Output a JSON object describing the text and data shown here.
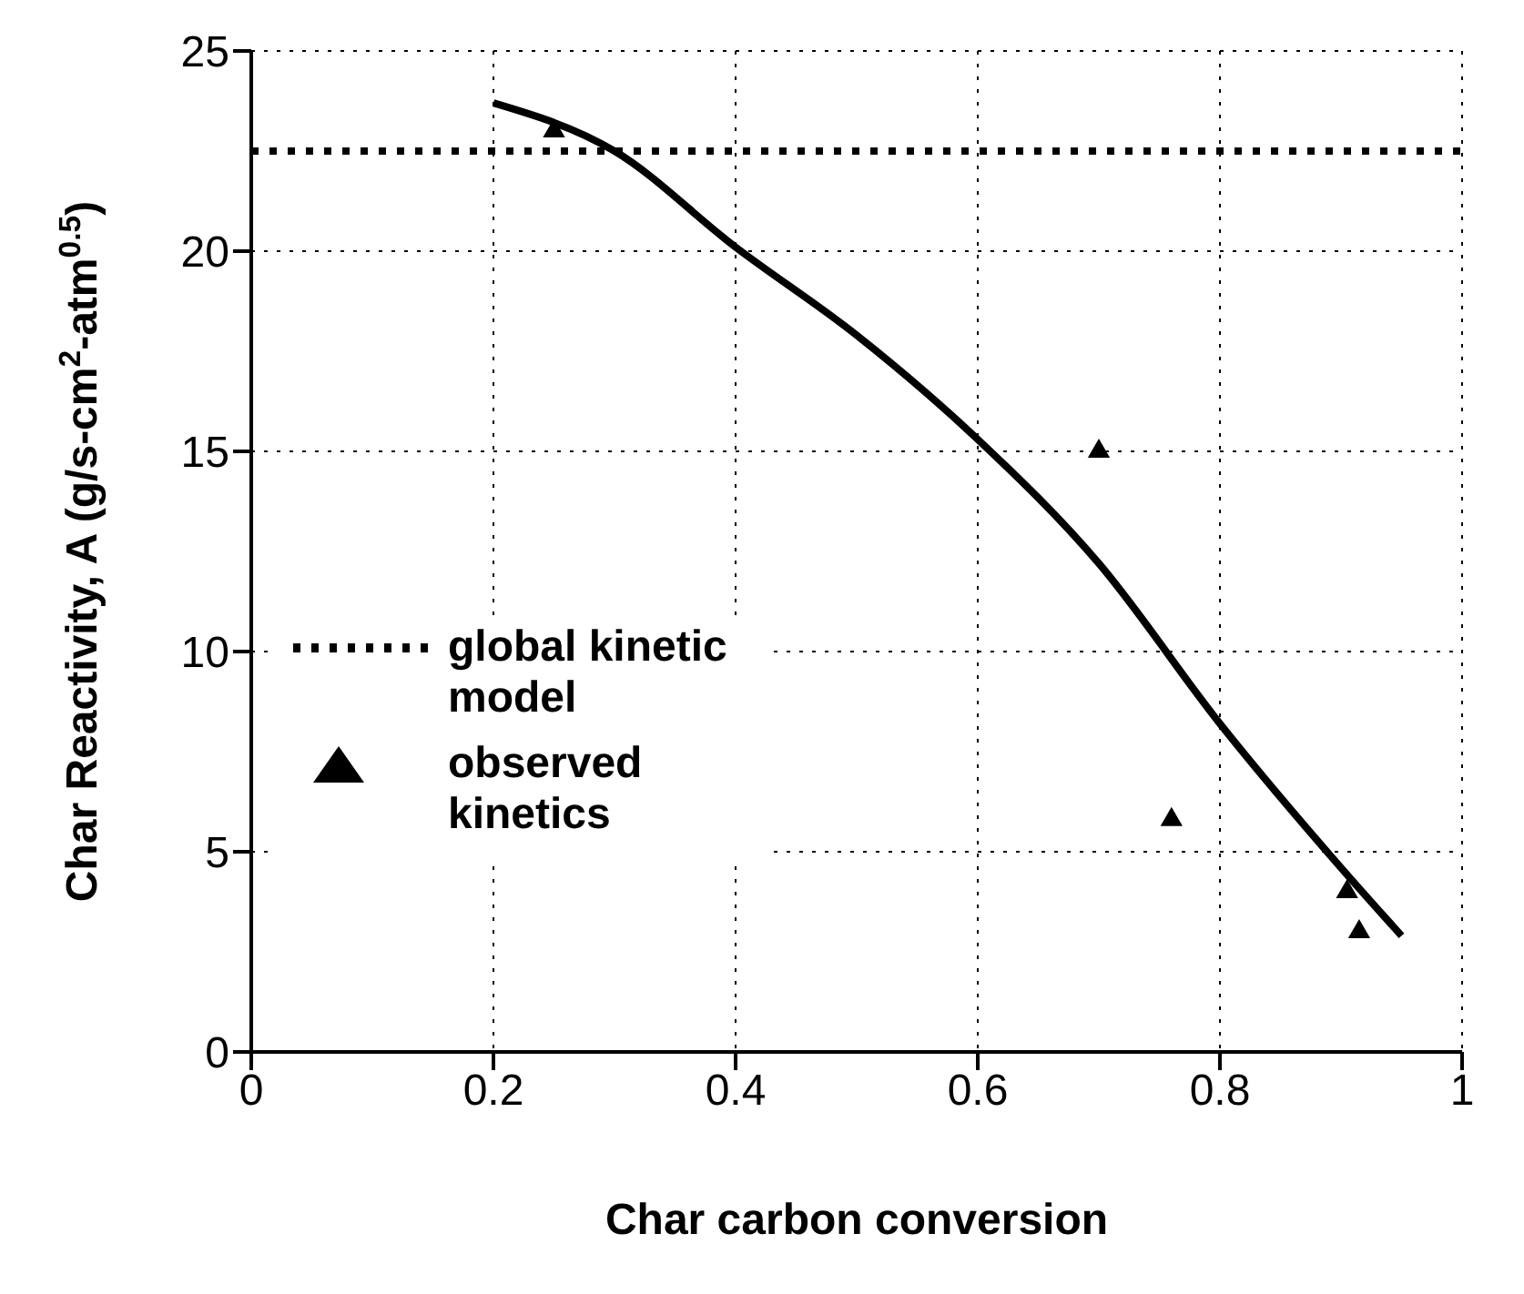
{
  "chart_data": {
    "type": "scatter",
    "xlabel": "Char carbon conversion",
    "ylabel": "Char Reactivity, A (g/s-cm$^{2}$-atm$^{0.5}$)",
    "series": [
      {
        "name": "global kinetic model",
        "type": "line",
        "line_style": "dotted",
        "marker": "none",
        "color": "#000000",
        "x": [
          0,
          1
        ],
        "values": [
          22.5,
          22.5
        ]
      },
      {
        "type": "line",
        "line_style": "solid",
        "marker": "none",
        "color": "#000000",
        "x": [
          0.2,
          0.3,
          0.4,
          0.5,
          0.6,
          0.7,
          0.8,
          0.9,
          0.95
        ],
        "values": [
          23.7,
          22.5,
          20.1,
          17.9,
          15.3,
          12.2,
          8.2,
          4.6,
          2.9
        ]
      },
      {
        "name": "observed kinetics",
        "marker": "triangle",
        "color": "#000000",
        "x": [
          0.25,
          0.7,
          0.76,
          0.905,
          0.915
        ],
        "values": [
          23,
          15,
          5.8,
          4,
          3
        ]
      }
    ],
    "xlim": [
      0,
      1
    ],
    "xticks": [
      0,
      0.2,
      0.4,
      0.6,
      0.8,
      1
    ],
    "ylim": [
      0,
      25
    ],
    "yticks": [
      0,
      5,
      10,
      15,
      20,
      25
    ],
    "grid": true,
    "legend": "left"
  }
}
